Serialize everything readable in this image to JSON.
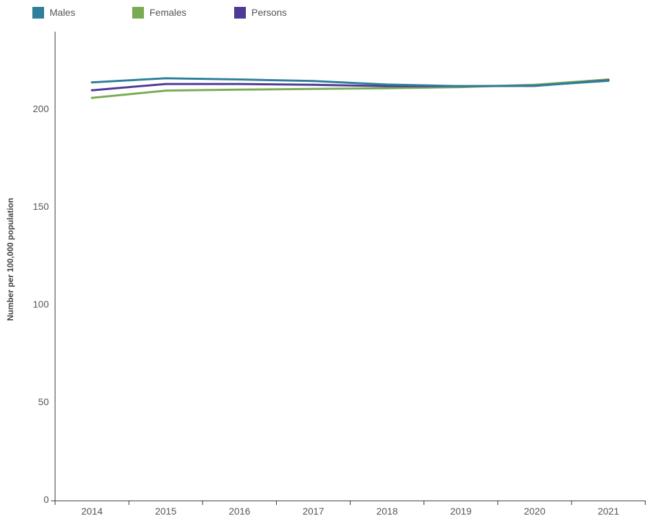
{
  "legend": [
    {
      "name": "Males",
      "color": "#2e7f9b"
    },
    {
      "name": "Females",
      "color": "#7aab53"
    },
    {
      "name": "Persons",
      "color": "#4e3a94"
    }
  ],
  "chart_data": {
    "type": "line",
    "title": "",
    "xlabel": "",
    "ylabel": "Number per 100,000 population",
    "x": [
      "2014",
      "2015",
      "2016",
      "2017",
      "2018",
      "2019",
      "2020",
      "2021"
    ],
    "yticks": [
      0,
      50,
      100,
      150,
      200
    ],
    "ylim": [
      0,
      225
    ],
    "grid": false,
    "legend_position": "top-left",
    "series": [
      {
        "name": "Females",
        "color": "#7aab53",
        "values": [
          205.9,
          209.6,
          210.1,
          210.5,
          210.8,
          211.4,
          212.6,
          215.3
        ]
      },
      {
        "name": "Persons",
        "color": "#4e3a94",
        "values": [
          209.8,
          213.0,
          213.0,
          212.6,
          211.9,
          211.9,
          212.0,
          214.9
        ]
      },
      {
        "name": "Males",
        "color": "#2e7f9b",
        "values": [
          213.8,
          215.9,
          215.3,
          214.5,
          212.7,
          211.9,
          212.2,
          214.6
        ]
      }
    ]
  }
}
